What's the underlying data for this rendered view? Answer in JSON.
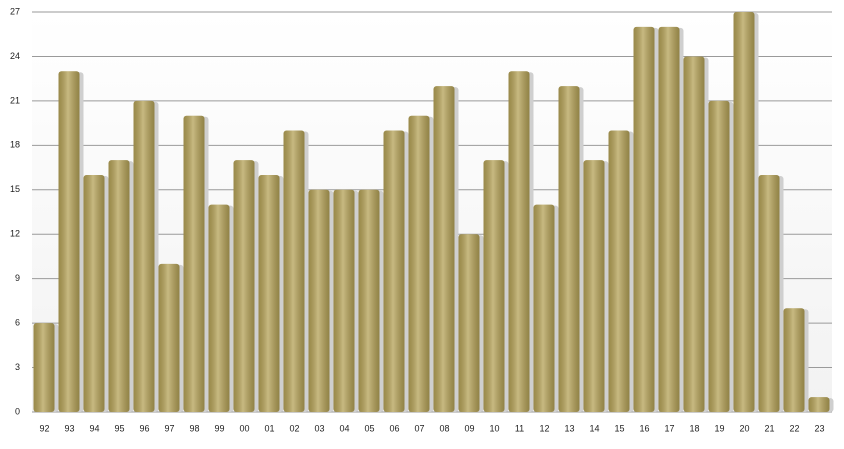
{
  "chart_data": {
    "type": "bar",
    "categories": [
      "92",
      "93",
      "94",
      "95",
      "96",
      "97",
      "98",
      "99",
      "00",
      "01",
      "02",
      "03",
      "04",
      "05",
      "06",
      "07",
      "08",
      "09",
      "10",
      "11",
      "12",
      "13",
      "14",
      "15",
      "16",
      "17",
      "18",
      "19",
      "20",
      "21",
      "22",
      "23"
    ],
    "values": [
      6,
      23,
      16,
      17,
      21,
      10,
      20,
      14,
      17,
      16,
      19,
      15,
      15,
      15,
      19,
      20,
      22,
      12,
      17,
      23,
      14,
      22,
      17,
      19,
      26,
      26,
      24,
      21,
      27,
      16,
      7,
      1
    ],
    "color": "#b5a257",
    "ylim": [
      0,
      27
    ],
    "yticks": [
      0,
      3,
      6,
      9,
      12,
      15,
      18,
      21,
      24,
      27
    ],
    "grid": true
  }
}
